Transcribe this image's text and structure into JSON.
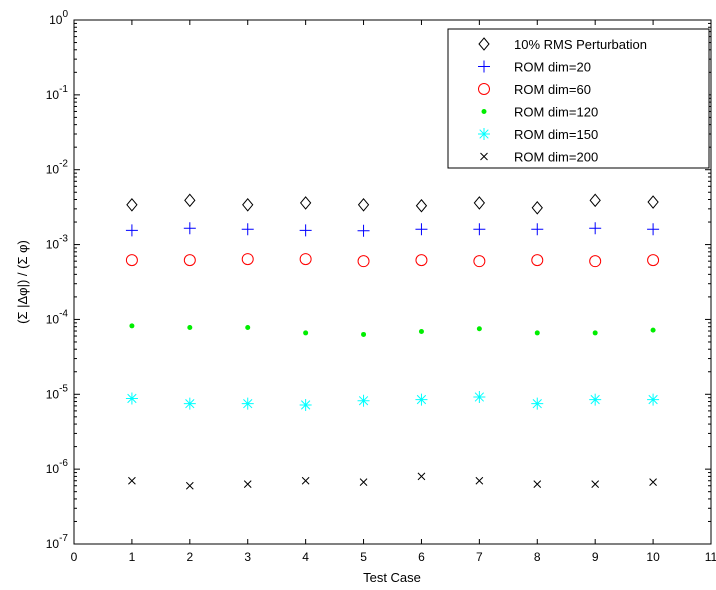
{
  "chart_data": {
    "type": "scatter",
    "x_scale": "linear",
    "y_scale": "log",
    "xlim": [
      0,
      11
    ],
    "ylim": [
      1e-07,
      1
    ],
    "xticks": [
      0,
      1,
      2,
      3,
      4,
      5,
      6,
      7,
      8,
      9,
      10,
      11
    ],
    "yticks": [
      {
        "value": 1,
        "base": "10",
        "exp": "0"
      },
      {
        "value": 0.1,
        "base": "10",
        "exp": "-1"
      },
      {
        "value": 0.01,
        "base": "10",
        "exp": "-2"
      },
      {
        "value": 0.001,
        "base": "10",
        "exp": "-3"
      },
      {
        "value": 0.0001,
        "base": "10",
        "exp": "-4"
      },
      {
        "value": 1e-05,
        "base": "10",
        "exp": "-5"
      },
      {
        "value": 1e-06,
        "base": "10",
        "exp": "-6"
      },
      {
        "value": 1e-07,
        "base": "10",
        "exp": "-7"
      }
    ],
    "xlabel": "Test Case",
    "ylabel": "(Σ |Δφ|) / (Σ φ)",
    "grid": false,
    "legend_position": "top-right",
    "x": [
      1,
      2,
      3,
      4,
      5,
      6,
      7,
      8,
      9,
      10
    ],
    "series": [
      {
        "name": "10% RMS Perturbation",
        "marker": "diamond",
        "color": "#000000",
        "values": [
          0.0034,
          0.0039,
          0.0034,
          0.0036,
          0.0034,
          0.0033,
          0.0036,
          0.0031,
          0.0039,
          0.0037
        ]
      },
      {
        "name": "ROM dim=20",
        "marker": "plus",
        "color": "#0000ff",
        "values": [
          0.00155,
          0.00165,
          0.0016,
          0.00155,
          0.00153,
          0.0016,
          0.0016,
          0.0016,
          0.00165,
          0.0016
        ]
      },
      {
        "name": "ROM dim=60",
        "marker": "circle",
        "color": "#ff0000",
        "values": [
          0.00062,
          0.00062,
          0.00064,
          0.00064,
          0.0006,
          0.00062,
          0.0006,
          0.00062,
          0.0006,
          0.00062
        ]
      },
      {
        "name": "ROM dim=120",
        "marker": "dot",
        "color": "#00ee00",
        "values": [
          8.2e-05,
          7.8e-05,
          7.8e-05,
          6.6e-05,
          6.3e-05,
          6.9e-05,
          7.5e-05,
          6.6e-05,
          6.6e-05,
          7.2e-05
        ]
      },
      {
        "name": "ROM dim=150",
        "marker": "asterisk",
        "color": "#00ffff",
        "values": [
          8.8e-06,
          7.5e-06,
          7.5e-06,
          7.2e-06,
          8.2e-06,
          8.5e-06,
          9.2e-06,
          7.5e-06,
          8.5e-06,
          8.5e-06
        ]
      },
      {
        "name": "ROM dim=200",
        "marker": "x",
        "color": "#000000",
        "values": [
          7e-07,
          6e-07,
          6.3e-07,
          7e-07,
          6.7e-07,
          8e-07,
          7e-07,
          6.3e-07,
          6.3e-07,
          6.7e-07
        ]
      }
    ]
  }
}
